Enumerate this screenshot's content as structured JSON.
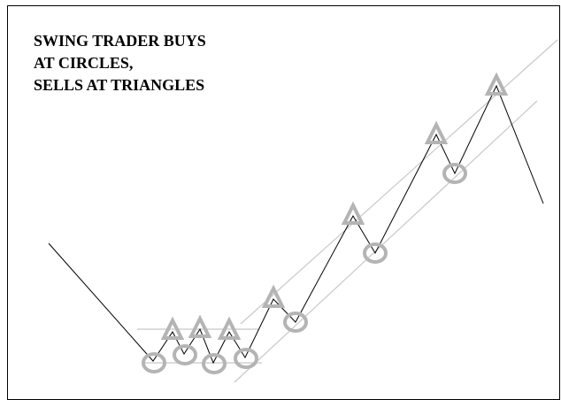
{
  "title_lines": [
    "SWING TRADER BUYS",
    "AT CIRCLES,",
    "SELLS AT TRIANGLES"
  ]
}
